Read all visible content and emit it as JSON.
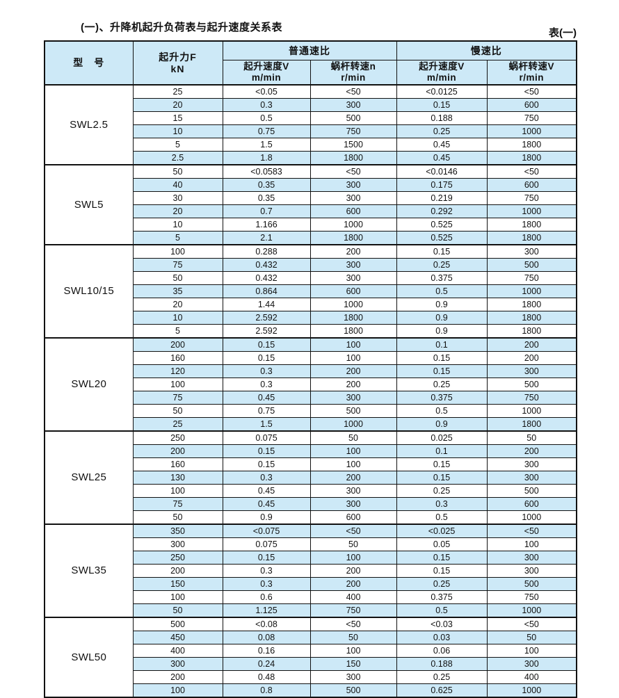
{
  "page": {
    "title": "(一)、升降机起升负荷表与起升速度关系表",
    "table_label": "表(一)"
  },
  "table": {
    "columns": {
      "model": "型　号",
      "force": [
        "起升力F",
        "kN"
      ],
      "groups": [
        {
          "label": "普通速比",
          "subs": [
            [
              "起升速度V",
              "m/min"
            ],
            [
              "蜗杆转速n",
              "r/min"
            ]
          ]
        },
        {
          "label": "慢速比",
          "subs": [
            [
              "起升速度V",
              "m/min"
            ],
            [
              "蜗杆转速V",
              "r/min"
            ]
          ]
        }
      ]
    },
    "groups": [
      {
        "model": "SWL2.5",
        "rows": [
          [
            "25",
            "<0.05",
            "<50",
            "<0.0125",
            "<50"
          ],
          [
            "20",
            "0.3",
            "300",
            "0.15",
            "600"
          ],
          [
            "15",
            "0.5",
            "500",
            "0.188",
            "750"
          ],
          [
            "10",
            "0.75",
            "750",
            "0.25",
            "1000"
          ],
          [
            "5",
            "1.5",
            "1500",
            "0.45",
            "1800"
          ],
          [
            "2.5",
            "1.8",
            "1800",
            "0.45",
            "1800"
          ]
        ]
      },
      {
        "model": "SWL5",
        "rows": [
          [
            "50",
            "<0.0583",
            "<50",
            "<0.0146",
            "<50"
          ],
          [
            "40",
            "0.35",
            "300",
            "0.175",
            "600"
          ],
          [
            "30",
            "0.35",
            "300",
            "0.219",
            "750"
          ],
          [
            "20",
            "0.7",
            "600",
            "0.292",
            "1000"
          ],
          [
            "10",
            "1.166",
            "1000",
            "0.525",
            "1800"
          ],
          [
            "5",
            "2.1",
            "1800",
            "0.525",
            "1800"
          ]
        ]
      },
      {
        "model": "SWL10/15",
        "rows": [
          [
            "100",
            "0.288",
            "200",
            "0.15",
            "300"
          ],
          [
            "75",
            "0.432",
            "300",
            "0.25",
            "500"
          ],
          [
            "50",
            "0.432",
            "300",
            "0.375",
            "750"
          ],
          [
            "35",
            "0.864",
            "600",
            "0.5",
            "1000"
          ],
          [
            "20",
            "1.44",
            "1000",
            "0.9",
            "1800"
          ],
          [
            "10",
            "2.592",
            "1800",
            "0.9",
            "1800"
          ],
          [
            "5",
            "2.592",
            "1800",
            "0.9",
            "1800"
          ]
        ]
      },
      {
        "model": "SWL20",
        "rows": [
          [
            "200",
            "0.15",
            "100",
            "0.1",
            "200"
          ],
          [
            "160",
            "0.15",
            "100",
            "0.15",
            "200"
          ],
          [
            "120",
            "0.3",
            "200",
            "0.15",
            "300"
          ],
          [
            "100",
            "0.3",
            "200",
            "0.25",
            "500"
          ],
          [
            "75",
            "0.45",
            "300",
            "0.375",
            "750"
          ],
          [
            "50",
            "0.75",
            "500",
            "0.5",
            "1000"
          ],
          [
            "25",
            "1.5",
            "1000",
            "0.9",
            "1800"
          ]
        ]
      },
      {
        "model": "SWL25",
        "rows": [
          [
            "250",
            "0.075",
            "50",
            "0.025",
            "50"
          ],
          [
            "200",
            "0.15",
            "100",
            "0.1",
            "200"
          ],
          [
            "160",
            "0.15",
            "100",
            "0.15",
            "300"
          ],
          [
            "130",
            "0.3",
            "200",
            "0.15",
            "300"
          ],
          [
            "100",
            "0.45",
            "300",
            "0.25",
            "500"
          ],
          [
            "75",
            "0.45",
            "300",
            "0.3",
            "600"
          ],
          [
            "50",
            "0.9",
            "600",
            "0.5",
            "1000"
          ]
        ]
      },
      {
        "model": "SWL35",
        "rows": [
          [
            "350",
            "<0.075",
            "<50",
            "<0.025",
            "<50"
          ],
          [
            "300",
            "0.075",
            "50",
            "0.05",
            "100"
          ],
          [
            "250",
            "0.15",
            "100",
            "0.15",
            "300"
          ],
          [
            "200",
            "0.3",
            "200",
            "0.15",
            "300"
          ],
          [
            "150",
            "0.3",
            "200",
            "0.25",
            "500"
          ],
          [
            "100",
            "0.6",
            "400",
            "0.375",
            "750"
          ],
          [
            "50",
            "1.125",
            "750",
            "0.5",
            "1000"
          ]
        ]
      },
      {
        "model": "SWL50",
        "rows": [
          [
            "500",
            "<0.08",
            "<50",
            "<0.03",
            "<50"
          ],
          [
            "450",
            "0.08",
            "50",
            "0.03",
            "50"
          ],
          [
            "400",
            "0.16",
            "100",
            "0.06",
            "100"
          ],
          [
            "300",
            "0.24",
            "150",
            "0.188",
            "300"
          ],
          [
            "200",
            "0.48",
            "300",
            "0.25",
            "400"
          ],
          [
            "100",
            "0.8",
            "500",
            "0.625",
            "1000"
          ]
        ]
      }
    ],
    "colors": {
      "stripe": "#cde9f7",
      "header": "#cde9f7",
      "border": "#111111"
    }
  }
}
